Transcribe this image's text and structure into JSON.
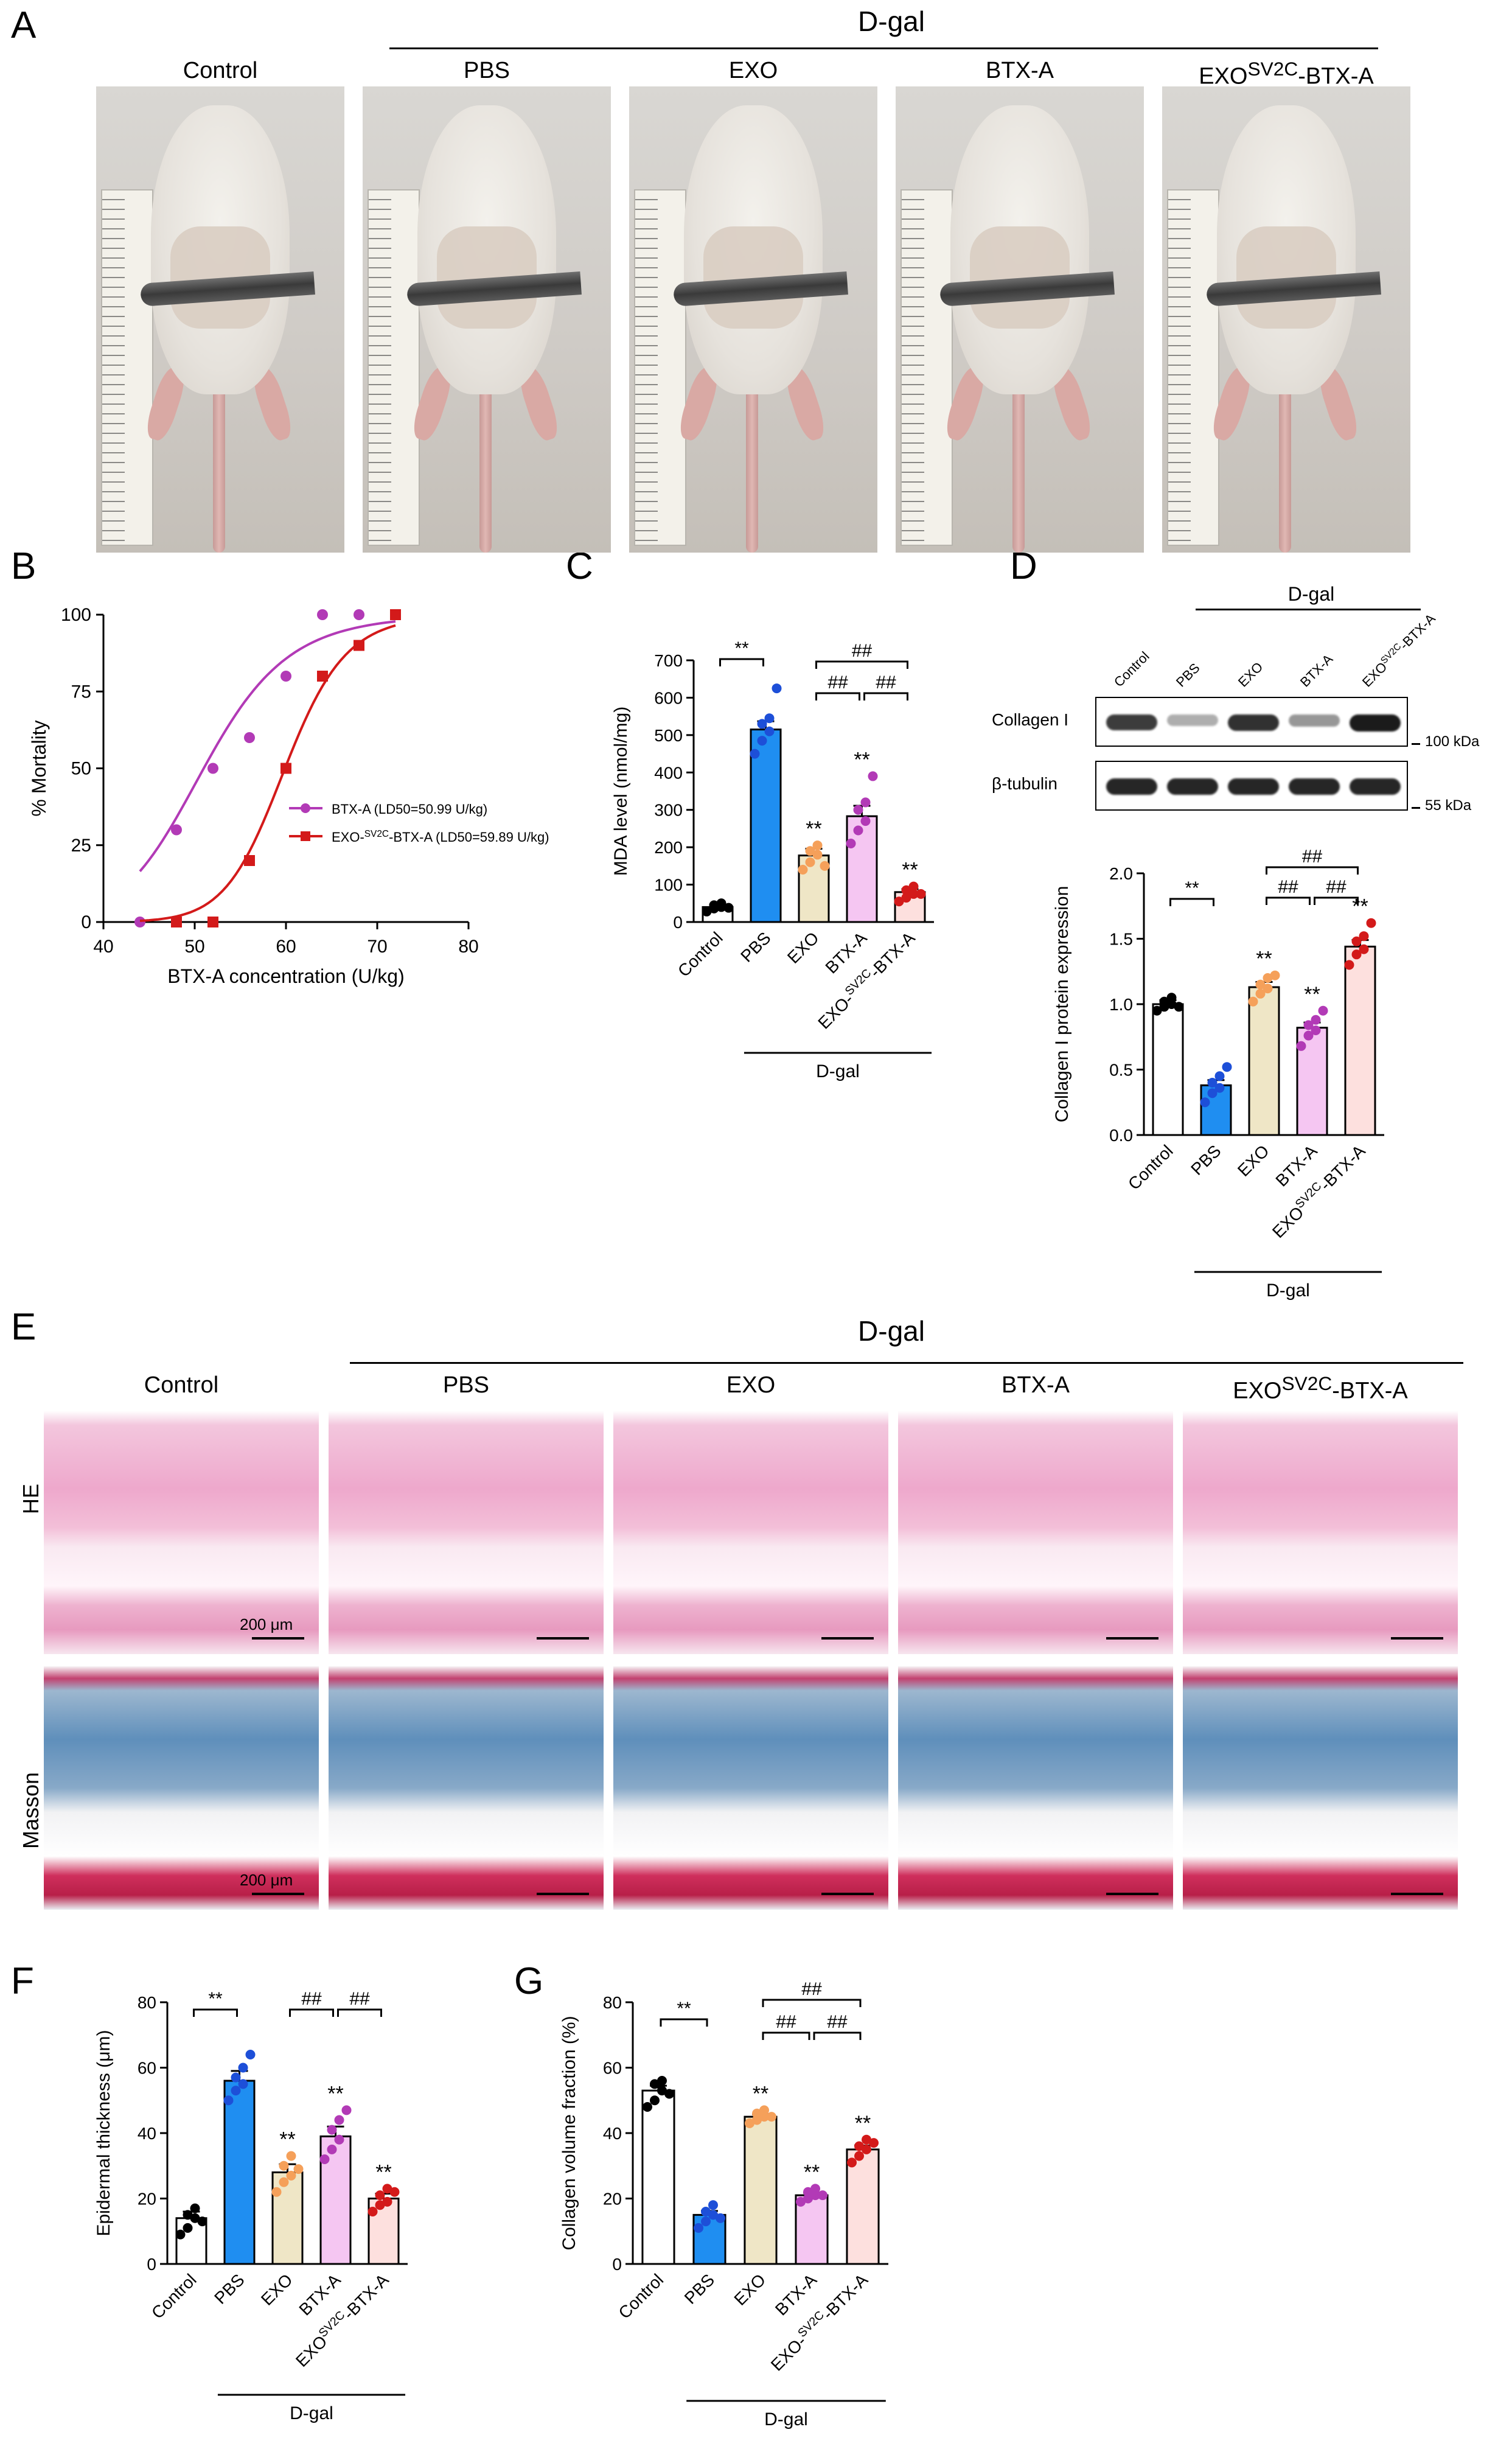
{
  "panel_letters": [
    "A",
    "B",
    "C",
    "D",
    "E",
    "F",
    "G"
  ],
  "panel_a": {
    "header": "D-gal",
    "groups": [
      "Control",
      "PBS",
      "EXO",
      "BTX-A",
      "EXO<sup>SV2C</sup>-BTX-A"
    ],
    "groups_plain": [
      "Control",
      "PBS",
      "EXO",
      "BTX-A",
      "EXOSV2C-BTX-A"
    ]
  },
  "panel_e": {
    "header": "D-gal",
    "groups": [
      "Control",
      "PBS",
      "EXO",
      "BTX-A",
      "EXOSV2C-BTX-A"
    ],
    "row_labels": [
      "HE",
      "Masson"
    ],
    "scale_text": "200 μm"
  },
  "panel_d_blot": {
    "header": "D-gal",
    "lanes": [
      "Control",
      "PBS",
      "EXO",
      "BTX-A",
      "EXOSV2C-BTX-A"
    ],
    "rows": [
      "Collagen I",
      "β-tubulin"
    ],
    "markers": [
      "100 kDa",
      "55 kDa"
    ],
    "band_intensity": {
      "Collagen I": [
        0.85,
        0.35,
        0.9,
        0.45,
        1.0
      ],
      "β-tubulin": [
        0.95,
        0.95,
        0.95,
        0.95,
        0.95
      ]
    }
  },
  "colors": {
    "Control": "#ffffff",
    "PBS": "#1f8ef1",
    "EXO": "#efe6c6",
    "BTX-A": "#f5c6f2",
    "EXOSV2C-BTX-A": "#fde0de",
    "dots": [
      "#000000",
      "#1d4fd8",
      "#f5a05a",
      "#b23ab6",
      "#d31a1a"
    ],
    "curve_btx": "#b23ab6",
    "curve_exo": "#d31a1a"
  },
  "chart_data": [
    {
      "id": "B",
      "type": "line",
      "xlabel": "BTX-A concentration (U/kg)",
      "ylabel": "% Mortality",
      "xlim": [
        40,
        80
      ],
      "ylim": [
        0,
        100
      ],
      "xticks": [
        40,
        50,
        60,
        70,
        80
      ],
      "yticks": [
        0,
        25,
        50,
        75,
        100
      ],
      "legend_position": "center-right",
      "series": [
        {
          "name": "BTX-A (LD50=50.99 U/kg)",
          "marker": "circle",
          "x": [
            44,
            48,
            52,
            56,
            60,
            64,
            68,
            72
          ],
          "y": [
            0,
            30,
            50,
            60,
            80,
            100,
            100,
            100
          ],
          "ld50": 50.99
        },
        {
          "name": "EXO-SV2C-BTX-A (LD50=59.89 U/kg)",
          "marker": "square",
          "x": [
            48,
            52,
            56,
            60,
            64,
            68,
            72
          ],
          "y": [
            0,
            0,
            20,
            50,
            80,
            90,
            100
          ],
          "ld50": 59.89
        }
      ]
    },
    {
      "id": "C",
      "type": "bar",
      "ylabel": "MDA level (nmol/mg)",
      "ylim": [
        0,
        700
      ],
      "yticks": [
        0,
        100,
        200,
        300,
        400,
        500,
        600,
        700
      ],
      "categories": [
        "Control",
        "PBS",
        "EXO",
        "BTX-A",
        "EXO-SV2C-BTX-A"
      ],
      "values": [
        40,
        515,
        178,
        283,
        80
      ],
      "sem": [
        6,
        22,
        18,
        28,
        8
      ],
      "points": [
        [
          28,
          36,
          40,
          45,
          50,
          38
        ],
        [
          450,
          485,
          510,
          530,
          545,
          625
        ],
        [
          140,
          160,
          180,
          190,
          205,
          150
        ],
        [
          210,
          245,
          270,
          300,
          320,
          390
        ],
        [
          55,
          65,
          75,
          85,
          95,
          75
        ]
      ],
      "group_label": "D-gal",
      "annotations": [
        "**",
        "**",
        "**",
        "**",
        "##",
        "##",
        "##"
      ],
      "comparisons": [
        {
          "pair": [
            "Control",
            "PBS"
          ],
          "label": "**"
        },
        {
          "pair": [
            "EXO",
            "EXO-SV2C-BTX-A"
          ],
          "label": "##"
        },
        {
          "pair": [
            "EXO",
            "BTX-A"
          ],
          "label": "##"
        },
        {
          "pair": [
            "BTX-A",
            "EXO-SV2C-BTX-A"
          ],
          "label": "##"
        }
      ],
      "star_over": [
        false,
        false,
        true,
        true,
        true
      ]
    },
    {
      "id": "D",
      "type": "bar",
      "ylabel": "Collagen I  protein expression",
      "ylim": [
        0,
        2.0
      ],
      "yticks": [
        0.0,
        0.5,
        1.0,
        1.5,
        2.0
      ],
      "categories": [
        "Control",
        "PBS",
        "EXO",
        "BTX-A",
        "EXOSV2C-BTX-A"
      ],
      "values": [
        1.0,
        0.38,
        1.13,
        0.82,
        1.44
      ],
      "sem": [
        0.03,
        0.04,
        0.04,
        0.04,
        0.05
      ],
      "points": [
        [
          0.95,
          0.98,
          1.0,
          1.02,
          1.05,
          0.98
        ],
        [
          0.25,
          0.32,
          0.36,
          0.4,
          0.45,
          0.52
        ],
        [
          1.02,
          1.08,
          1.12,
          1.15,
          1.2,
          1.22
        ],
        [
          0.68,
          0.76,
          0.8,
          0.84,
          0.88,
          0.95
        ],
        [
          1.3,
          1.38,
          1.42,
          1.48,
          1.52,
          1.62
        ]
      ],
      "group_label": "D-gal",
      "annotations": [
        "**",
        "**",
        "**",
        "**",
        "##",
        "##",
        "##"
      ],
      "comparisons": [
        {
          "pair": [
            "Control",
            "PBS"
          ],
          "label": "**"
        },
        {
          "pair": [
            "EXO",
            "EXOSV2C-BTX-A"
          ],
          "label": "##"
        },
        {
          "pair": [
            "EXO",
            "BTX-A"
          ],
          "label": "##"
        },
        {
          "pair": [
            "BTX-A",
            "EXOSV2C-BTX-A"
          ],
          "label": "##"
        }
      ],
      "star_over": [
        false,
        false,
        true,
        true,
        true
      ]
    },
    {
      "id": "F",
      "type": "bar",
      "ylabel": "Epidermal thickness (μm)",
      "ylim": [
        0,
        80
      ],
      "yticks": [
        0,
        20,
        40,
        60,
        80
      ],
      "categories": [
        "Control",
        "PBS",
        "EXO",
        "BTX-A",
        "EXOSV2C-BTX-A"
      ],
      "values": [
        14,
        56,
        28,
        39,
        20
      ],
      "sem": [
        2,
        3,
        2.5,
        3,
        1.5
      ],
      "points": [
        [
          9,
          11,
          14,
          15,
          17,
          13
        ],
        [
          50,
          53,
          55,
          57,
          60,
          64
        ],
        [
          22,
          25,
          27,
          30,
          33,
          29
        ],
        [
          32,
          35,
          38,
          41,
          44,
          47
        ],
        [
          16,
          18,
          19,
          21,
          23,
          22
        ]
      ],
      "group_label": "D-gal",
      "annotations": [
        "**",
        "**",
        "**",
        "**",
        "##",
        "##"
      ],
      "comparisons": [
        {
          "pair": [
            "Control",
            "PBS"
          ],
          "label": "**"
        },
        {
          "pair": [
            "EXO",
            "BTX-A"
          ],
          "label": "##"
        },
        {
          "pair": [
            "BTX-A",
            "EXOSV2C-BTX-A"
          ],
          "label": "##"
        }
      ],
      "star_over": [
        false,
        false,
        true,
        true,
        true
      ]
    },
    {
      "id": "G",
      "type": "bar",
      "ylabel": "Collagen volume fraction (%)",
      "ylim": [
        0,
        80
      ],
      "yticks": [
        0,
        20,
        40,
        60,
        80
      ],
      "categories": [
        "Control",
        "PBS",
        "EXO",
        "BTX-A",
        "EXO-SV2C-BTX-A"
      ],
      "values": [
        53,
        15,
        45,
        21,
        35
      ],
      "sem": [
        1.5,
        1.2,
        0.8,
        0.8,
        1.2
      ],
      "points": [
        [
          48,
          50,
          53,
          55,
          56,
          52
        ],
        [
          11,
          13,
          15,
          16,
          18,
          14
        ],
        [
          43,
          44,
          45,
          46,
          47,
          45
        ],
        [
          19,
          20,
          21,
          22,
          23,
          21
        ],
        [
          31,
          33,
          35,
          36,
          38,
          37
        ]
      ],
      "group_label": "D-gal",
      "annotations": [
        "**",
        "**",
        "**",
        "**",
        "##",
        "##",
        "##"
      ],
      "comparisons": [
        {
          "pair": [
            "Control",
            "PBS"
          ],
          "label": "**"
        },
        {
          "pair": [
            "EXO",
            "EXO-SV2C-BTX-A"
          ],
          "label": "##"
        },
        {
          "pair": [
            "EXO",
            "BTX-A"
          ],
          "label": "##"
        },
        {
          "pair": [
            "BTX-A",
            "EXO-SV2C-BTX-A"
          ],
          "label": "##"
        }
      ],
      "star_over": [
        false,
        false,
        true,
        true,
        true
      ]
    }
  ]
}
